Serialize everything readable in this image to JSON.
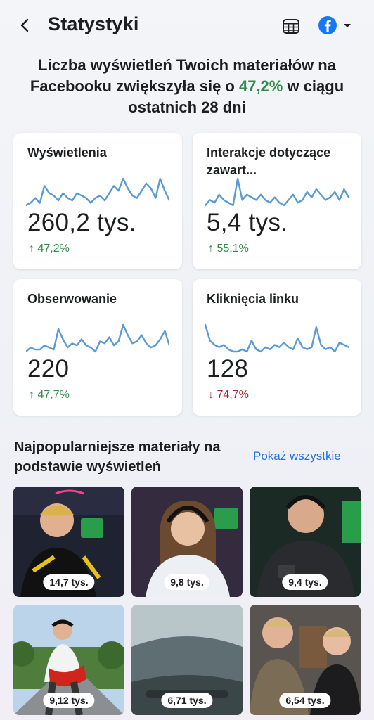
{
  "header": {
    "title": "Statystyki",
    "back_icon": "chevron-left-icon",
    "calendar_icon": "calendar-icon",
    "platform_icon": "facebook-icon",
    "dropdown_icon": "caret-down-icon",
    "fb_color": "#1877f2"
  },
  "headline": {
    "before": "Liczba wyświetleń Twoich materiałów na Facebooku zwiększyła się o ",
    "percent": "47,2%",
    "after": " w ciągu ostatnich 28 dni"
  },
  "metrics": [
    {
      "label": "Wyświetlenia",
      "value": "260,2 tys.",
      "change": "47,2%",
      "direction": "up",
      "trend": [
        3,
        4,
        6,
        4,
        11,
        8,
        7,
        5,
        8,
        6,
        5,
        8,
        7,
        6,
        4,
        6,
        7,
        5,
        8,
        11,
        9,
        14,
        10,
        7,
        6,
        9,
        12,
        10,
        6,
        14,
        9,
        5
      ]
    },
    {
      "label": "Interakcje dotyczące zawart...",
      "value": "5,4 tys.",
      "change": "55,1%",
      "direction": "up",
      "trend": [
        4,
        6,
        5,
        8,
        6,
        5,
        4,
        14,
        6,
        8,
        7,
        6,
        8,
        6,
        5,
        7,
        5,
        4,
        6,
        8,
        5,
        6,
        9,
        7,
        10,
        8,
        6,
        7,
        9,
        6,
        10,
        7
      ]
    },
    {
      "label": "Obserwowanie",
      "value": "220",
      "change": "47,7%",
      "direction": "up",
      "trend": [
        3,
        5,
        4,
        4,
        6,
        5,
        4,
        14,
        9,
        5,
        7,
        6,
        9,
        6,
        5,
        3,
        8,
        7,
        10,
        6,
        8,
        16,
        11,
        7,
        8,
        11,
        7,
        5,
        6,
        9,
        13,
        6
      ]
    },
    {
      "label": "Kliknięcia linku",
      "value": "128",
      "change": "74,7%",
      "direction": "down",
      "trend": [
        15,
        8,
        6,
        5,
        6,
        4,
        3,
        3,
        4,
        3,
        8,
        4,
        3,
        5,
        4,
        6,
        5,
        7,
        5,
        4,
        9,
        5,
        4,
        5,
        14,
        6,
        4,
        5,
        3,
        7,
        6,
        5
      ]
    }
  ],
  "top_content": {
    "title": "Najpopularniejsze materiały na podstawie wyświetleń",
    "show_all": "Pokaż wszystkie",
    "items": [
      {
        "views": "14,7 tys."
      },
      {
        "views": "9,8 tys."
      },
      {
        "views": "9,4 tys."
      },
      {
        "views": "9,12 tys."
      },
      {
        "views": "6,71 tys."
      },
      {
        "views": "6,54 tys."
      }
    ]
  },
  "colors": {
    "up": "#2e8b4a",
    "down": "#9e2a2f",
    "sparkline": "#5b9bd5",
    "link": "#1b74e4"
  }
}
